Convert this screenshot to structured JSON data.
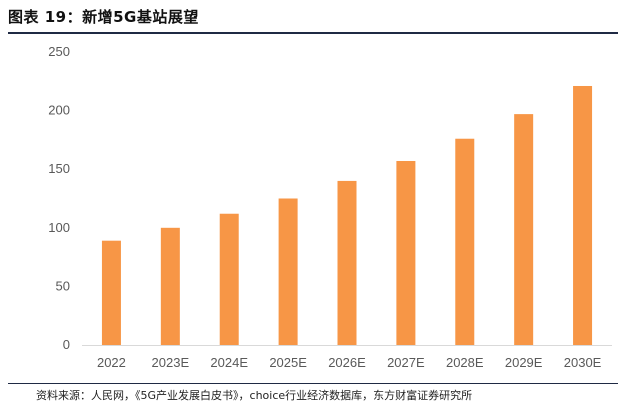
{
  "figure": {
    "title": "图表 19：新增5G基站展望",
    "source": "资料来源：人民网，《5G产业发展白皮书》，choice行业经济数据库，东方财富证券研究所"
  },
  "chart_data": {
    "type": "bar",
    "title": "",
    "xlabel": "",
    "ylabel": "",
    "categories": [
      "2022",
      "2023E",
      "2024E",
      "2025E",
      "2026E",
      "2027E",
      "2028E",
      "2029E",
      "2030E"
    ],
    "values": [
      89,
      100,
      112,
      125,
      140,
      157,
      176,
      197,
      221
    ],
    "ylim": [
      0,
      250
    ],
    "yticks": [
      0,
      50,
      100,
      150,
      200,
      250
    ],
    "bar_color": "#F79646",
    "grid": false,
    "legend": "none"
  }
}
